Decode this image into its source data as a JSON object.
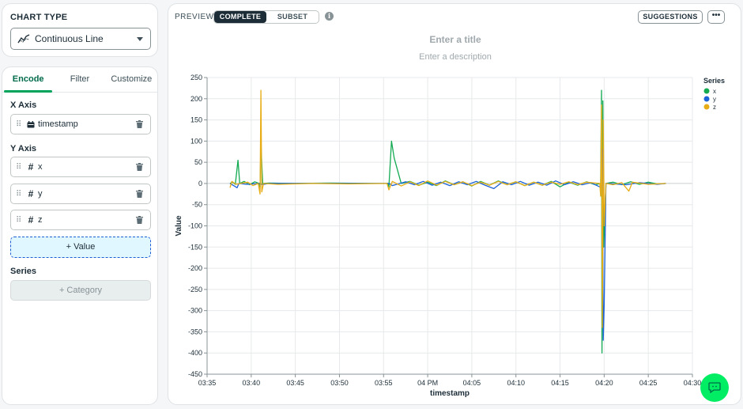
{
  "chart_type_panel": {
    "label": "CHART TYPE",
    "selected": "Continuous Line",
    "icon": "line-chart-icon"
  },
  "encode_panel": {
    "tabs": [
      {
        "label": "Encode",
        "active": true
      },
      {
        "label": "Filter",
        "active": false
      },
      {
        "label": "Customize",
        "active": false
      }
    ],
    "x_axis": {
      "heading": "X Axis",
      "field": "timestamp",
      "field_icon": "calendar-icon"
    },
    "y_axis": {
      "heading": "Y Axis",
      "fields": [
        {
          "name": "x",
          "icon": "hash-icon"
        },
        {
          "name": "y",
          "icon": "hash-icon"
        },
        {
          "name": "z",
          "icon": "hash-icon"
        }
      ],
      "add_value_label": "+ Value"
    },
    "series": {
      "heading": "Series",
      "add_category_label": "+ Category"
    }
  },
  "preview_panel": {
    "label": "PREVIEW",
    "modes": [
      "COMPLETE",
      "SUBSET"
    ],
    "active_mode": "COMPLETE",
    "info_icon": "i",
    "suggestions_label": "SUGGESTIONS",
    "more_label": "•••",
    "title_placeholder": "Enter a title",
    "description_placeholder": "Enter a description"
  },
  "colors": {
    "accent": "#00a35c",
    "series_x": "#13aa52",
    "series_y": "#1a63d8",
    "series_z": "#e8ad16",
    "fab": "#00ed64"
  },
  "chart_data": {
    "type": "line",
    "xlabel": "timestamp",
    "ylabel": "Value",
    "ylim": [
      -450,
      250
    ],
    "yticks": [
      250,
      200,
      150,
      100,
      50,
      0,
      -50,
      -100,
      -150,
      -200,
      -250,
      -300,
      -350,
      -400,
      -450
    ],
    "xticks": [
      "03:35",
      "03:40",
      "03:45",
      "03:50",
      "03:55",
      "04 PM",
      "04:05",
      "04:10",
      "04:15",
      "04:20",
      "04:25",
      "04:30"
    ],
    "xlim_minutes": [
      0,
      55
    ],
    "grid": true,
    "legend": {
      "title": "Series",
      "position": "right",
      "entries": [
        "x",
        "y",
        "z"
      ]
    },
    "series": [
      {
        "name": "x",
        "color": "#13aa52",
        "points": [
          [
            2.6,
            0
          ],
          [
            2.9,
            3
          ],
          [
            3.2,
            -2
          ],
          [
            3.5,
            55
          ],
          [
            3.7,
            0
          ],
          [
            4.2,
            5
          ],
          [
            4.8,
            -3
          ],
          [
            5.4,
            4
          ],
          [
            5.9,
            0
          ],
          [
            6.0,
            -10
          ],
          [
            6.1,
            95
          ],
          [
            6.3,
            0
          ],
          [
            7,
            1
          ],
          [
            10,
            0
          ],
          [
            14,
            1
          ],
          [
            19,
            0
          ],
          [
            20.5,
            0
          ],
          [
            20.6,
            -8
          ],
          [
            20.9,
            100
          ],
          [
            21.2,
            60
          ],
          [
            22.0,
            0
          ],
          [
            23,
            5
          ],
          [
            24,
            -4
          ],
          [
            25,
            3
          ],
          [
            26,
            -5
          ],
          [
            27,
            6
          ],
          [
            28,
            -3
          ],
          [
            29,
            4
          ],
          [
            30,
            -6
          ],
          [
            31,
            5
          ],
          [
            32,
            -4
          ],
          [
            33,
            6
          ],
          [
            34,
            -3
          ],
          [
            35,
            4
          ],
          [
            36,
            -5
          ],
          [
            37,
            3
          ],
          [
            38,
            -4
          ],
          [
            39,
            5
          ],
          [
            40,
            -8
          ],
          [
            41,
            3
          ],
          [
            42,
            -4
          ],
          [
            43,
            4
          ],
          [
            44,
            -3
          ],
          [
            44.6,
            0
          ],
          [
            44.7,
            220
          ],
          [
            44.75,
            -400
          ],
          [
            44.85,
            195
          ],
          [
            44.95,
            -150
          ],
          [
            45.2,
            0
          ],
          [
            46,
            3
          ],
          [
            47,
            -3
          ],
          [
            48,
            4
          ],
          [
            49,
            -2
          ],
          [
            50,
            3
          ],
          [
            51,
            -1
          ],
          [
            52,
            0
          ]
        ]
      },
      {
        "name": "y",
        "color": "#1a63d8",
        "points": [
          [
            2.6,
            0
          ],
          [
            3.0,
            -5
          ],
          [
            3.4,
            -10
          ],
          [
            3.6,
            0
          ],
          [
            4.5,
            -2
          ],
          [
            6.0,
            0
          ],
          [
            6.2,
            -3
          ],
          [
            7,
            0
          ],
          [
            20.6,
            0
          ],
          [
            21.0,
            -5
          ],
          [
            22.5,
            4
          ],
          [
            23.5,
            -3
          ],
          [
            24.5,
            5
          ],
          [
            25.5,
            -4
          ],
          [
            26.5,
            3
          ],
          [
            27.5,
            -5
          ],
          [
            28.5,
            4
          ],
          [
            29.5,
            -3
          ],
          [
            30.5,
            5
          ],
          [
            31.5,
            -4
          ],
          [
            32.5,
            -12
          ],
          [
            33.5,
            4
          ],
          [
            34.5,
            -3
          ],
          [
            35.5,
            5
          ],
          [
            36.5,
            -4
          ],
          [
            37.5,
            3
          ],
          [
            38.5,
            -4
          ],
          [
            39.5,
            6
          ],
          [
            40.5,
            -3
          ],
          [
            41.5,
            4
          ],
          [
            42.5,
            -3
          ],
          [
            43.5,
            2
          ],
          [
            44.7,
            -10
          ],
          [
            44.8,
            80
          ],
          [
            44.9,
            -370
          ],
          [
            45.0,
            -285
          ],
          [
            45.2,
            0
          ],
          [
            47.5,
            -3
          ],
          [
            49,
            2
          ],
          [
            51,
            -2
          ],
          [
            52,
            0
          ]
        ]
      },
      {
        "name": "z",
        "color": "#e8ad16",
        "points": [
          [
            2.6,
            -10
          ],
          [
            2.8,
            5
          ],
          [
            3.3,
            -2
          ],
          [
            3.8,
            0
          ],
          [
            4.6,
            3
          ],
          [
            5.2,
            -5
          ],
          [
            5.8,
            0
          ],
          [
            6.0,
            -25
          ],
          [
            6.1,
            220
          ],
          [
            6.2,
            -20
          ],
          [
            6.4,
            0
          ],
          [
            8,
            -2
          ],
          [
            12,
            0
          ],
          [
            16,
            -1
          ],
          [
            20.4,
            0
          ],
          [
            20.6,
            -15
          ],
          [
            21.0,
            5
          ],
          [
            22,
            -6
          ],
          [
            23,
            4
          ],
          [
            24,
            -5
          ],
          [
            25,
            6
          ],
          [
            26,
            -4
          ],
          [
            27,
            5
          ],
          [
            28,
            -3
          ],
          [
            29,
            4
          ],
          [
            30,
            -5
          ],
          [
            31,
            3
          ],
          [
            32,
            -4
          ],
          [
            33,
            5
          ],
          [
            34,
            -3
          ],
          [
            35,
            4
          ],
          [
            36,
            -5
          ],
          [
            37,
            3
          ],
          [
            38,
            -4
          ],
          [
            39,
            3
          ],
          [
            40,
            -2
          ],
          [
            41,
            4
          ],
          [
            42,
            -3
          ],
          [
            43,
            3
          ],
          [
            44.5,
            0
          ],
          [
            44.6,
            -30
          ],
          [
            44.7,
            185
          ],
          [
            44.8,
            -340
          ],
          [
            44.9,
            150
          ],
          [
            45.0,
            -100
          ],
          [
            45.2,
            0
          ],
          [
            46,
            -3
          ],
          [
            47,
            2
          ],
          [
            47.8,
            -18
          ],
          [
            48.2,
            3
          ],
          [
            50,
            -2
          ],
          [
            52,
            0
          ]
        ]
      }
    ]
  }
}
